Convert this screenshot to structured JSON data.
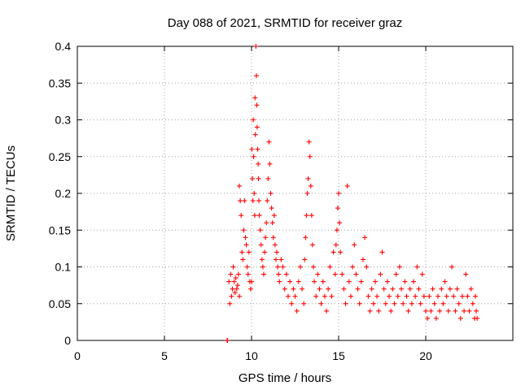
{
  "chart_data": {
    "type": "scatter",
    "title": "Day 088 of 2021, SRMTID for receiver graz",
    "xlabel": "GPS time / hours",
    "ylabel": "SRMTID / TECUs",
    "xlim": [
      0,
      25
    ],
    "ylim": [
      0,
      0.4
    ],
    "xticks": [
      0,
      5,
      10,
      15,
      20
    ],
    "xtick_labels": [
      "0",
      "5",
      "10",
      "15",
      "20"
    ],
    "yticks": [
      0,
      0.05,
      0.1,
      0.15,
      0.2,
      0.25,
      0.3,
      0.35,
      0.4
    ],
    "ytick_labels": [
      "0",
      "0.05",
      "0.1",
      "0.15",
      "0.2",
      "0.25",
      "0.3",
      "0.35",
      "0.4"
    ],
    "grid": true,
    "series_color": "#ff0000",
    "marker": "plus",
    "series": [
      {
        "name": "SRMTID",
        "points": [
          [
            8.6,
            0.0
          ],
          [
            8.62,
            0.0
          ],
          [
            8.7,
            0.08
          ],
          [
            8.75,
            0.05
          ],
          [
            8.8,
            0.09
          ],
          [
            8.85,
            0.06
          ],
          [
            8.9,
            0.07
          ],
          [
            8.95,
            0.1
          ],
          [
            9.0,
            0.08
          ],
          [
            9.05,
            0.065
          ],
          [
            9.1,
            0.085
          ],
          [
            9.15,
            0.07
          ],
          [
            9.2,
            0.075
          ],
          [
            9.25,
            0.09
          ],
          [
            9.3,
            0.06
          ],
          [
            9.3,
            0.21
          ],
          [
            9.35,
            0.19
          ],
          [
            9.4,
            0.17
          ],
          [
            9.45,
            0.12
          ],
          [
            9.5,
            0.11
          ],
          [
            9.55,
            0.15
          ],
          [
            9.6,
            0.19
          ],
          [
            9.65,
            0.14
          ],
          [
            9.7,
            0.13
          ],
          [
            9.75,
            0.1
          ],
          [
            9.8,
            0.09
          ],
          [
            9.85,
            0.12
          ],
          [
            9.9,
            0.08
          ],
          [
            9.95,
            0.07
          ],
          [
            10.0,
            0.08
          ],
          [
            10.02,
            0.26
          ],
          [
            10.05,
            0.22
          ],
          [
            10.08,
            0.19
          ],
          [
            10.1,
            0.3
          ],
          [
            10.12,
            0.25
          ],
          [
            10.15,
            0.2
          ],
          [
            10.18,
            0.17
          ],
          [
            10.2,
            0.33
          ],
          [
            10.22,
            0.28
          ],
          [
            10.25,
            0.4
          ],
          [
            10.28,
            0.36
          ],
          [
            10.3,
            0.32
          ],
          [
            10.32,
            0.29
          ],
          [
            10.35,
            0.26
          ],
          [
            10.38,
            0.24
          ],
          [
            10.4,
            0.22
          ],
          [
            10.42,
            0.19
          ],
          [
            10.45,
            0.17
          ],
          [
            10.5,
            0.15
          ],
          [
            10.55,
            0.13
          ],
          [
            10.6,
            0.11
          ],
          [
            10.65,
            0.1
          ],
          [
            10.7,
            0.09
          ],
          [
            10.75,
            0.12
          ],
          [
            10.8,
            0.14
          ],
          [
            10.85,
            0.16
          ],
          [
            10.9,
            0.19
          ],
          [
            10.95,
            0.22
          ],
          [
            11.0,
            0.27
          ],
          [
            11.05,
            0.24
          ],
          [
            11.1,
            0.2
          ],
          [
            11.15,
            0.18
          ],
          [
            11.2,
            0.16
          ],
          [
            11.25,
            0.14
          ],
          [
            11.3,
            0.17
          ],
          [
            11.35,
            0.13
          ],
          [
            11.4,
            0.11
          ],
          [
            11.45,
            0.12
          ],
          [
            11.5,
            0.1
          ],
          [
            11.55,
            0.09
          ],
          [
            11.6,
            0.08
          ],
          [
            11.7,
            0.11
          ],
          [
            11.8,
            0.1
          ],
          [
            11.9,
            0.07
          ],
          [
            12.0,
            0.09
          ],
          [
            12.1,
            0.06
          ],
          [
            12.2,
            0.08
          ],
          [
            12.3,
            0.05
          ],
          [
            12.4,
            0.07
          ],
          [
            12.5,
            0.06
          ],
          [
            12.6,
            0.04
          ],
          [
            12.7,
            0.08
          ],
          [
            12.8,
            0.1
          ],
          [
            12.9,
            0.07
          ],
          [
            13.0,
            0.05
          ],
          [
            13.05,
            0.11
          ],
          [
            13.1,
            0.14
          ],
          [
            13.15,
            0.17
          ],
          [
            13.2,
            0.2
          ],
          [
            13.25,
            0.22
          ],
          [
            13.3,
            0.27
          ],
          [
            13.35,
            0.25
          ],
          [
            13.4,
            0.21
          ],
          [
            13.45,
            0.17
          ],
          [
            13.5,
            0.13
          ],
          [
            13.55,
            0.1
          ],
          [
            13.6,
            0.08
          ],
          [
            13.7,
            0.06
          ],
          [
            13.8,
            0.09
          ],
          [
            13.9,
            0.07
          ],
          [
            14.0,
            0.05
          ],
          [
            14.1,
            0.08
          ],
          [
            14.2,
            0.06
          ],
          [
            14.3,
            0.04
          ],
          [
            14.4,
            0.07
          ],
          [
            14.5,
            0.1
          ],
          [
            14.6,
            0.06
          ],
          [
            14.7,
            0.12
          ],
          [
            14.8,
            0.09
          ],
          [
            14.85,
            0.13
          ],
          [
            14.9,
            0.15
          ],
          [
            14.95,
            0.18
          ],
          [
            15.0,
            0.2
          ],
          [
            15.05,
            0.16
          ],
          [
            15.1,
            0.12
          ],
          [
            15.2,
            0.09
          ],
          [
            15.3,
            0.07
          ],
          [
            15.4,
            0.05
          ],
          [
            15.5,
            0.21
          ],
          [
            15.6,
            0.08
          ],
          [
            15.7,
            0.06
          ],
          [
            15.8,
            0.1
          ],
          [
            15.9,
            0.13
          ],
          [
            16.0,
            0.09
          ],
          [
            16.1,
            0.07
          ],
          [
            16.2,
            0.05
          ],
          [
            16.3,
            0.08
          ],
          [
            16.4,
            0.11
          ],
          [
            16.5,
            0.14
          ],
          [
            16.6,
            0.1
          ],
          [
            16.7,
            0.06
          ],
          [
            16.8,
            0.04
          ],
          [
            16.9,
            0.07
          ],
          [
            17.0,
            0.05
          ],
          [
            17.1,
            0.08
          ],
          [
            17.2,
            0.06
          ],
          [
            17.3,
            0.04
          ],
          [
            17.4,
            0.09
          ],
          [
            17.5,
            0.12
          ],
          [
            17.6,
            0.07
          ],
          [
            17.7,
            0.05
          ],
          [
            17.8,
            0.08
          ],
          [
            17.9,
            0.06
          ],
          [
            18.0,
            0.04
          ],
          [
            18.1,
            0.07
          ],
          [
            18.2,
            0.05
          ],
          [
            18.3,
            0.09
          ],
          [
            18.4,
            0.06
          ],
          [
            18.5,
            0.1
          ],
          [
            18.6,
            0.07
          ],
          [
            18.7,
            0.05
          ],
          [
            18.8,
            0.08
          ],
          [
            18.9,
            0.06
          ],
          [
            19.0,
            0.04
          ],
          [
            19.1,
            0.07
          ],
          [
            19.2,
            0.05
          ],
          [
            19.3,
            0.08
          ],
          [
            19.4,
            0.06
          ],
          [
            19.5,
            0.1
          ],
          [
            19.6,
            0.07
          ],
          [
            19.7,
            0.05
          ],
          [
            19.8,
            0.09
          ],
          [
            19.9,
            0.06
          ],
          [
            20.0,
            0.04
          ],
          [
            20.1,
            0.03
          ],
          [
            20.2,
            0.06
          ],
          [
            20.3,
            0.04
          ],
          [
            20.4,
            0.07
          ],
          [
            20.5,
            0.05
          ],
          [
            20.6,
            0.03
          ],
          [
            20.7,
            0.06
          ],
          [
            20.8,
            0.04
          ],
          [
            20.9,
            0.07
          ],
          [
            21.0,
            0.05
          ],
          [
            21.1,
            0.08
          ],
          [
            21.2,
            0.06
          ],
          [
            21.3,
            0.04
          ],
          [
            21.4,
            0.07
          ],
          [
            21.5,
            0.1
          ],
          [
            21.6,
            0.06
          ],
          [
            21.7,
            0.04
          ],
          [
            21.8,
            0.07
          ],
          [
            21.9,
            0.05
          ],
          [
            22.0,
            0.03
          ],
          [
            22.1,
            0.06
          ],
          [
            22.2,
            0.04
          ],
          [
            22.3,
            0.09
          ],
          [
            22.4,
            0.06
          ],
          [
            22.5,
            0.04
          ],
          [
            22.6,
            0.07
          ],
          [
            22.7,
            0.05
          ],
          [
            22.8,
            0.03
          ],
          [
            22.85,
            0.06
          ],
          [
            22.9,
            0.04
          ],
          [
            22.95,
            0.03
          ]
        ]
      }
    ]
  }
}
